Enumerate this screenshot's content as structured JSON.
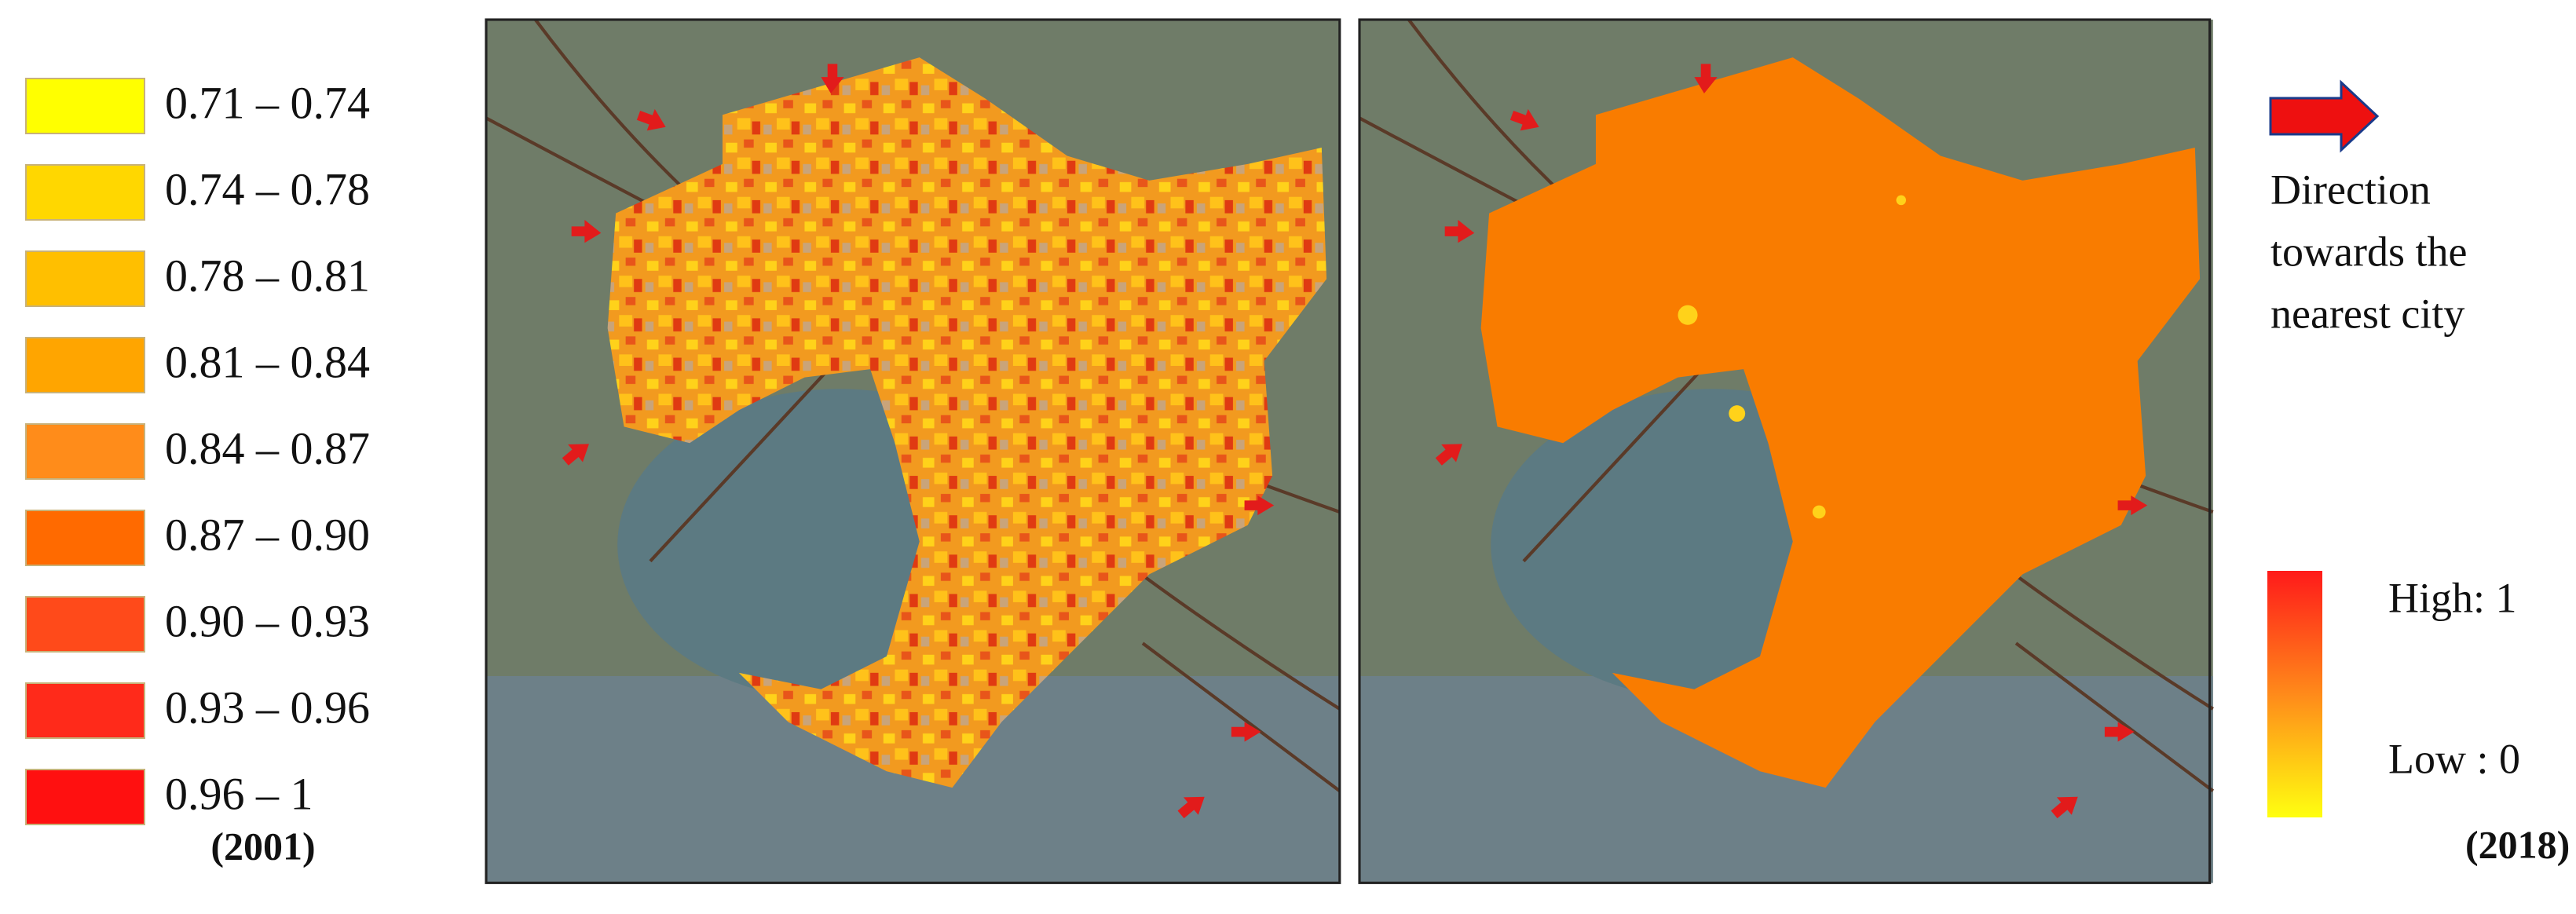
{
  "legend": {
    "items": [
      {
        "label": "0.71 – 0.74",
        "color": "#ffff00"
      },
      {
        "label": "0.74 – 0.78",
        "color": "#ffd700"
      },
      {
        "label": "0.78 – 0.81",
        "color": "#ffbf00"
      },
      {
        "label": "0.81 – 0.84",
        "color": "#ffa500"
      },
      {
        "label": "0.84 – 0.87",
        "color": "#ff8c1a"
      },
      {
        "label": "0.87 – 0.90",
        "color": "#ff6a00"
      },
      {
        "label": "0.90 – 0.93",
        "color": "#ff4a1a"
      },
      {
        "label": "0.93 – 0.96",
        "color": "#ff2a1a"
      },
      {
        "label": "0.96 – 1",
        "color": "#ff1010"
      }
    ],
    "year": "(2001)"
  },
  "direction_legend": {
    "text": [
      "Direction",
      "towards the",
      "nearest city"
    ]
  },
  "gradient_legend": {
    "high": "High: 1",
    "low": "Low : 0",
    "year": "(2018)"
  }
}
